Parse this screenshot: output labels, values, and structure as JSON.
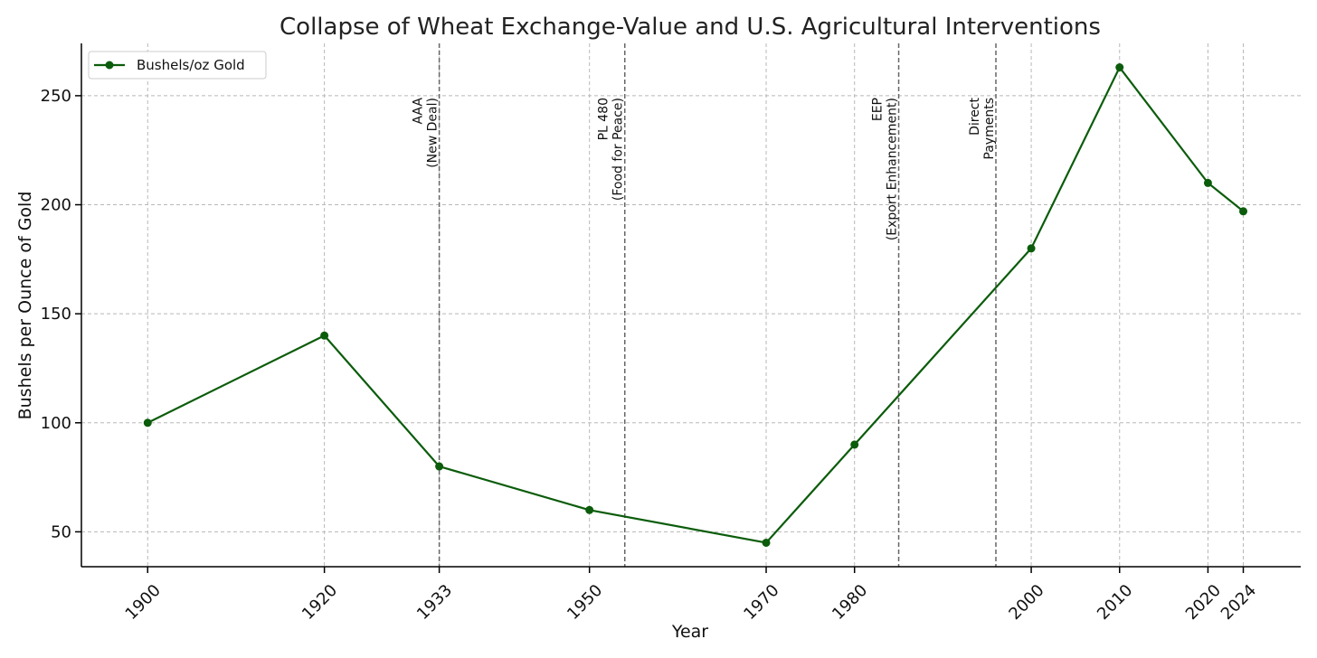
{
  "chart_data": {
    "type": "line",
    "title": "Collapse of Wheat Exchange-Value and U.S. Agricultural Interventions",
    "xlabel": "Year",
    "ylabel": "Bushels per Ounce of Gold",
    "xlim": [
      1892.5,
      2030.5
    ],
    "ylim": [
      34,
      274
    ],
    "x_ticks": [
      1900,
      1920,
      1933,
      1950,
      1970,
      1980,
      2000,
      2010,
      2020,
      2024
    ],
    "y_ticks": [
      50,
      100,
      150,
      200,
      250
    ],
    "grid": true,
    "legend_position": "upper-left",
    "series": [
      {
        "name": "Bushels/oz Gold",
        "color": "#0b5c0b",
        "marker": "circle",
        "x": [
          1900,
          1920,
          1933,
          1950,
          1970,
          1980,
          2000,
          2010,
          2020,
          2024
        ],
        "y": [
          100,
          140,
          80,
          60,
          45,
          90,
          180,
          263,
          210,
          197
        ]
      }
    ],
    "events": [
      {
        "x": 1933,
        "label_lines": [
          "AAA",
          "(New Deal)"
        ]
      },
      {
        "x": 1954,
        "label_lines": [
          "PL 480",
          "(Food for Peace)"
        ]
      },
      {
        "x": 1985,
        "label_lines": [
          "EEP",
          "(Export Enhancement)"
        ]
      },
      {
        "x": 1996,
        "label_lines": [
          "Direct",
          "Payments"
        ]
      }
    ]
  }
}
